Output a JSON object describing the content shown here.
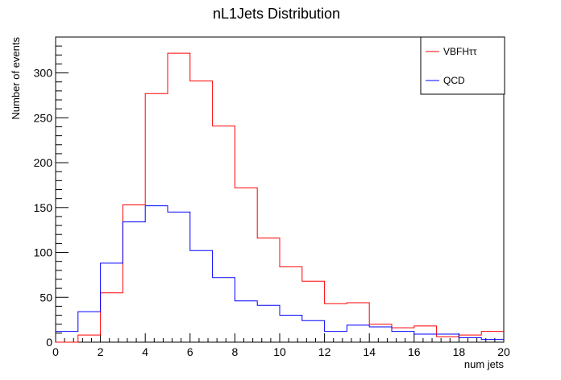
{
  "chart_data": {
    "type": "histogram",
    "title": "nL1Jets Distribution",
    "xlabel": "num jets",
    "ylabel": "Number of events",
    "xlim": [
      0,
      20
    ],
    "ylim": [
      0,
      340
    ],
    "x_ticks": [
      0,
      2,
      4,
      6,
      8,
      10,
      12,
      14,
      16,
      18,
      20
    ],
    "y_ticks": [
      0,
      50,
      100,
      150,
      200,
      250,
      300
    ],
    "bin_edges": [
      0,
      1,
      2,
      3,
      4,
      5,
      6,
      7,
      8,
      9,
      10,
      11,
      12,
      13,
      14,
      15,
      16,
      17,
      18,
      19,
      20
    ],
    "legend_position": "top-right",
    "series": [
      {
        "name": "VBFHττ",
        "color": "#ff0000",
        "values": [
          0,
          8,
          55,
          153,
          277,
          322,
          291,
          241,
          172,
          116,
          84,
          68,
          43,
          44,
          20,
          16,
          18,
          6,
          8,
          12
        ]
      },
      {
        "name": "QCD",
        "color": "#0000ff",
        "values": [
          12,
          34,
          88,
          134,
          152,
          145,
          102,
          72,
          46,
          41,
          30,
          24,
          12,
          19,
          17,
          12,
          9,
          9,
          5,
          3
        ]
      }
    ]
  }
}
